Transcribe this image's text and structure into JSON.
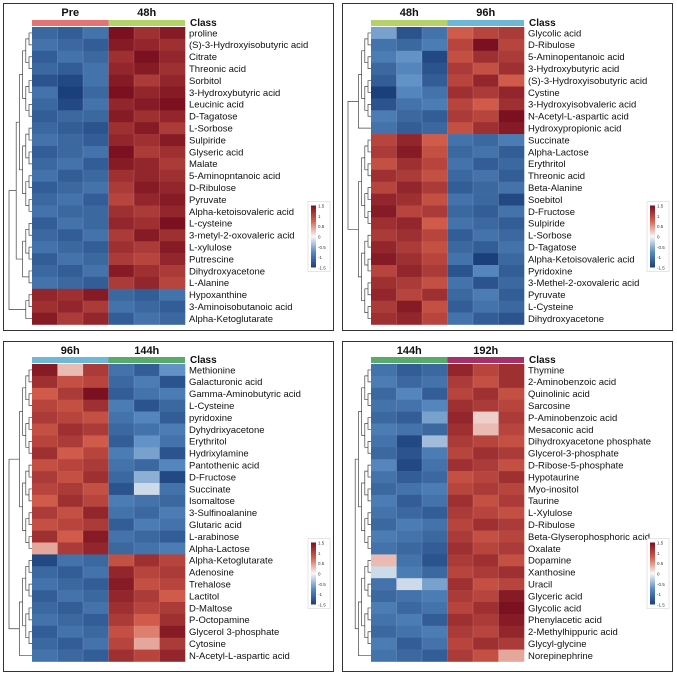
{
  "chart_data": [
    {
      "type": "heatmap",
      "class_label": "Class",
      "groups": [
        {
          "name": "Pre",
          "color": "#e57373"
        },
        {
          "name": "48h",
          "color": "#b5d269"
        }
      ],
      "legend_ticks": [
        "1.5",
        "1",
        "0.5",
        "0",
        "-0.5",
        "-1",
        "-1.5"
      ],
      "rows": [
        "proline",
        "(S)-3-Hydroxyisobutyric acid",
        "Citrate",
        "Threonic acid",
        "Sorbitol",
        "3-Hydroxybutyric acid",
        "Leucinic acid",
        "D-Tagatose",
        "L-Sorbose",
        "Sulpiride",
        "Glyseric acid",
        "Malate",
        "5-Aminopntanoic acid",
        "D-Ribulose",
        "Pyruvate",
        "Alpha-ketoisovaleric acid",
        "L-cysteine",
        "3-metyl-2-oxovaleric acid",
        "L-xylulose",
        "Putrescine",
        "Dihydroxyacetone",
        "L-Alanine",
        "Hypoxanthine",
        "3-Aminoisobutanoic acid",
        "Alpha-Ketoglutarate"
      ],
      "values": [
        [
          -1.1,
          -1.2,
          -1.0,
          1.5,
          1.2,
          1.4
        ],
        [
          -1.0,
          -1.1,
          -1.2,
          1.4,
          1.3,
          1.2
        ],
        [
          -1.2,
          -1.0,
          -1.1,
          1.2,
          1.5,
          1.3
        ],
        [
          -1.1,
          -1.2,
          -1.0,
          1.3,
          1.4,
          1.2
        ],
        [
          -1.3,
          -1.4,
          -1.0,
          1.4,
          1.1,
          1.3
        ],
        [
          -1.0,
          -1.5,
          -1.1,
          1.5,
          1.3,
          1.4
        ],
        [
          -1.1,
          -1.4,
          -1.0,
          1.3,
          1.4,
          1.5
        ],
        [
          -1.2,
          -1.1,
          -1.1,
          1.4,
          1.2,
          1.3
        ],
        [
          -1.1,
          -1.2,
          -1.3,
          1.2,
          1.4,
          1.1
        ],
        [
          -1.0,
          -1.1,
          -1.2,
          1.3,
          1.2,
          1.4
        ],
        [
          -1.2,
          -1.1,
          -1.0,
          1.5,
          1.1,
          1.2
        ],
        [
          -1.1,
          -1.0,
          -1.2,
          1.4,
          1.3,
          1.1
        ],
        [
          -1.0,
          -1.2,
          -1.1,
          1.2,
          1.3,
          1.2
        ],
        [
          -1.2,
          -1.1,
          -1.0,
          1.1,
          1.4,
          1.3
        ],
        [
          -1.1,
          -1.0,
          -1.2,
          1.0,
          1.3,
          1.4
        ],
        [
          -1.0,
          -1.1,
          -1.1,
          1.2,
          1.1,
          1.3
        ],
        [
          -1.2,
          -1.0,
          -1.1,
          1.3,
          1.2,
          1.5
        ],
        [
          -1.1,
          -1.2,
          -1.0,
          1.1,
          1.4,
          1.2
        ],
        [
          -1.0,
          -1.1,
          -1.2,
          1.2,
          1.1,
          1.4
        ],
        [
          -1.2,
          -1.0,
          -1.1,
          1.1,
          1.0,
          1.3
        ],
        [
          -1.1,
          -1.2,
          -1.0,
          1.4,
          1.2,
          1.1
        ],
        [
          -1.0,
          -1.1,
          -1.2,
          1.1,
          1.3,
          1.0
        ],
        [
          1.3,
          1.2,
          1.4,
          -1.1,
          -1.2,
          -1.0
        ],
        [
          1.2,
          1.3,
          1.1,
          -1.0,
          -1.1,
          -1.2
        ],
        [
          1.4,
          1.1,
          1.3,
          -1.2,
          -1.0,
          -1.1
        ]
      ]
    },
    {
      "type": "heatmap",
      "class_label": "Class",
      "groups": [
        {
          "name": "48h",
          "color": "#b5d269"
        },
        {
          "name": "96h",
          "color": "#6fb7d6"
        }
      ],
      "legend_ticks": [
        "1.5",
        "1",
        "0.5",
        "0",
        "-0.5",
        "-1",
        "-1.5"
      ],
      "rows": [
        "Glycolic acid",
        "D-Ribulose",
        "5-Aminopentanoic acid",
        "3-Hydroxybutyric acid",
        "(S)-3-Hydroxyisobutyric acid",
        "Cystine",
        "3-Hydroxyisobvaleric acid",
        "N-Acetyl-L-aspartic acid",
        "Hydroxypropionic acid",
        "Succinate",
        "Alpha-Lactose",
        "Erythritol",
        "Threonic acid",
        "Beta-Alanine",
        "Soebitol",
        "D-Fructose",
        "Sulpiride",
        "L-Sorbose",
        "D-Tagatose",
        "Alpha-Ketoisovaleric acid",
        "Pyridoxine",
        "3-Methel-2-oxovaleric acid",
        "Pyruvate",
        "L-Cysteine",
        "Dihydroxyacetone"
      ],
      "values": [
        [
          -0.6,
          -1.3,
          -1.0,
          0.8,
          1.0,
          1.1
        ],
        [
          -1.0,
          -1.1,
          -0.9,
          1.0,
          1.5,
          1.0
        ],
        [
          -0.9,
          -0.7,
          -1.4,
          0.9,
          1.2,
          1.1
        ],
        [
          -1.1,
          -0.8,
          -1.3,
          1.1,
          0.9,
          1.2
        ],
        [
          -1.2,
          -0.7,
          -1.2,
          1.0,
          1.3,
          0.8
        ],
        [
          -1.5,
          -0.8,
          -1.0,
          1.2,
          1.1,
          1.3
        ],
        [
          -1.3,
          -1.0,
          -0.9,
          1.0,
          0.8,
          1.2
        ],
        [
          -0.9,
          -1.1,
          -1.2,
          1.1,
          1.0,
          1.5
        ],
        [
          -1.0,
          -1.2,
          -1.1,
          0.9,
          1.2,
          1.4
        ],
        [
          1.0,
          1.3,
          0.8,
          -1.0,
          -1.1,
          -0.9
        ],
        [
          1.1,
          1.4,
          0.9,
          -1.1,
          -1.0,
          -1.2
        ],
        [
          0.9,
          1.2,
          1.0,
          -1.0,
          -1.2,
          -1.1
        ],
        [
          1.2,
          1.1,
          0.9,
          -1.1,
          -1.0,
          -1.2
        ],
        [
          1.0,
          1.3,
          1.1,
          -1.2,
          -1.1,
          -1.0
        ],
        [
          1.3,
          1.2,
          0.9,
          -1.0,
          -1.1,
          -1.4
        ],
        [
          1.4,
          1.0,
          1.1,
          -1.1,
          -1.2,
          -1.0
        ],
        [
          1.2,
          1.3,
          0.8,
          -1.0,
          -1.1,
          -1.2
        ],
        [
          1.1,
          1.2,
          1.0,
          -1.2,
          -1.0,
          -1.1
        ],
        [
          1.3,
          1.1,
          0.9,
          -1.1,
          -1.2,
          -1.0
        ],
        [
          1.4,
          1.2,
          1.0,
          -1.0,
          -1.5,
          -1.1
        ],
        [
          1.0,
          1.3,
          1.1,
          -1.3,
          -0.8,
          -1.2
        ],
        [
          1.2,
          1.1,
          0.9,
          -1.0,
          -1.3,
          -1.1
        ],
        [
          1.3,
          1.0,
          1.2,
          -1.1,
          -0.9,
          -1.2
        ],
        [
          1.1,
          1.4,
          0.9,
          -1.2,
          -1.0,
          -1.1
        ],
        [
          1.2,
          1.3,
          1.0,
          -1.0,
          -1.2,
          -1.3
        ]
      ]
    },
    {
      "type": "heatmap",
      "class_label": "Class",
      "groups": [
        {
          "name": "96h",
          "color": "#6fb7d6"
        },
        {
          "name": "144h",
          "color": "#5aaa6b"
        }
      ],
      "legend_ticks": [
        "1.5",
        "1",
        "0.5",
        "0",
        "-0.5",
        "-1",
        "-1.5"
      ],
      "rows": [
        "Methionine",
        "Galacturonic acid",
        "Gamma-Aminobutyric acid",
        "L-Cysteine",
        "pyridoxine",
        "Dyhydrixyacetone",
        "Erythritol",
        "Hydrixylamine",
        "Pantothenic acid",
        "D-Fructose",
        "Succinate",
        "Isomaltose",
        "3-Sulfinoalanine",
        "Glutaric acid",
        "L-arabinose",
        "Alpha-Lactose",
        "Alpha-Ketoglutarate",
        "Adenosine",
        "Trehalose",
        "Lactitol",
        "D-Maltose",
        "P-Octopamine",
        "Glycerol 3-phosphate",
        "Cytosine",
        "N-Acetyl-L-aspartic acid"
      ],
      "values": [
        [
          1.4,
          0.3,
          1.1,
          -1.0,
          -1.2,
          -0.7
        ],
        [
          1.2,
          0.9,
          1.0,
          -1.1,
          -0.9,
          -1.3
        ],
        [
          0.8,
          1.1,
          1.5,
          -1.2,
          -1.0,
          -0.9
        ],
        [
          1.0,
          0.9,
          1.2,
          -0.9,
          -1.3,
          -1.1
        ],
        [
          1.1,
          1.0,
          0.9,
          -1.0,
          -0.8,
          -1.2
        ],
        [
          0.9,
          1.2,
          1.1,
          -1.1,
          -1.0,
          -0.9
        ],
        [
          1.0,
          1.1,
          0.8,
          -1.2,
          -0.7,
          -1.0
        ],
        [
          1.2,
          0.8,
          1.0,
          -0.9,
          -0.6,
          -1.3
        ],
        [
          0.9,
          1.0,
          1.1,
          -1.0,
          -1.1,
          -0.8
        ],
        [
          1.1,
          0.9,
          1.2,
          -1.1,
          -0.5,
          -1.4
        ],
        [
          1.0,
          1.1,
          0.9,
          -1.3,
          -0.2,
          -1.0
        ],
        [
          0.8,
          1.2,
          1.0,
          -0.9,
          -1.0,
          -1.1
        ],
        [
          1.1,
          0.9,
          1.3,
          -1.0,
          -1.1,
          -0.9
        ],
        [
          0.9,
          1.0,
          1.1,
          -1.2,
          -0.9,
          -1.0
        ],
        [
          1.2,
          0.8,
          1.4,
          -1.0,
          -1.1,
          -1.2
        ],
        [
          0.4,
          1.1,
          1.3,
          -1.1,
          -1.0,
          -0.9
        ],
        [
          -1.4,
          -1.0,
          -1.1,
          0.9,
          1.2,
          1.0
        ],
        [
          -1.1,
          -1.2,
          -1.0,
          1.3,
          1.0,
          1.1
        ],
        [
          -1.0,
          -1.1,
          -1.2,
          1.4,
          0.9,
          1.0
        ],
        [
          -1.2,
          -1.0,
          -1.1,
          1.3,
          1.1,
          0.8
        ],
        [
          -1.1,
          -1.2,
          -1.0,
          1.2,
          1.0,
          1.1
        ],
        [
          -1.0,
          -1.1,
          -1.2,
          1.1,
          0.8,
          1.2
        ],
        [
          -1.2,
          -1.0,
          -1.1,
          0.9,
          0.6,
          1.4
        ],
        [
          -1.1,
          -1.2,
          -1.0,
          1.0,
          0.4,
          1.1
        ],
        [
          -1.0,
          -1.1,
          -1.2,
          1.2,
          1.0,
          1.3
        ]
      ]
    },
    {
      "type": "heatmap",
      "class_label": "Class",
      "groups": [
        {
          "name": "144h",
          "color": "#5aaa6b"
        },
        {
          "name": "192h",
          "color": "#a8306a"
        }
      ],
      "legend_ticks": [
        "1.5",
        "1",
        "0.5",
        "0",
        "-0.5",
        "-1",
        "-1.5"
      ],
      "rows": [
        "Thymine",
        "2-Aminobenzoic acid",
        "Quinolinic acid",
        "Sarcosine",
        "P-Aminobenzoic acid",
        "Mesaconic acid",
        "Dihydroxyacetone phosphate",
        "Glycerol-3-phosphate",
        "D-Ribose-5-phosphate",
        "Hypotaurine",
        "Myo-inositol",
        "Taurine",
        "L-Xylulose",
        "D-Ribulose",
        "Beta-Glyserophosphoric acid",
        "Oxalate",
        "Dopamine",
        "Xanthosine",
        "Uracil",
        "Glyceric acid",
        "Glycolic acid",
        "Phenylacetic acid",
        "2-Methylhippuric acid",
        "Glycyl-glycine",
        "Norepinephrine"
      ],
      "values": [
        [
          -1.0,
          -1.2,
          -1.1,
          1.3,
          1.0,
          1.2
        ],
        [
          -0.9,
          -1.1,
          -1.0,
          1.1,
          0.9,
          1.2
        ],
        [
          -1.1,
          -0.8,
          -1.2,
          1.0,
          1.2,
          0.9
        ],
        [
          -1.0,
          -1.0,
          -0.8,
          1.2,
          1.1,
          1.0
        ],
        [
          -1.1,
          -1.2,
          -0.6,
          1.3,
          0.2,
          1.1
        ],
        [
          -0.9,
          -1.0,
          -1.1,
          1.2,
          0.3,
          1.0
        ],
        [
          -1.0,
          -1.4,
          -0.4,
          1.1,
          1.0,
          0.9
        ],
        [
          -1.1,
          -1.3,
          -0.9,
          1.0,
          1.2,
          1.1
        ],
        [
          -0.8,
          -1.4,
          -1.0,
          1.2,
          1.1,
          0.9
        ],
        [
          -1.0,
          -1.2,
          -1.1,
          0.9,
          1.0,
          1.2
        ],
        [
          -1.1,
          -1.0,
          -0.9,
          1.0,
          1.1,
          1.0
        ],
        [
          -0.9,
          -1.2,
          -1.0,
          1.2,
          0.9,
          1.1
        ],
        [
          -1.0,
          -1.1,
          -1.2,
          1.1,
          1.0,
          0.9
        ],
        [
          -1.1,
          -0.9,
          -1.0,
          1.0,
          1.2,
          1.1
        ],
        [
          -0.9,
          -1.0,
          -1.1,
          1.1,
          0.9,
          1.0
        ],
        [
          -1.0,
          -1.1,
          -1.2,
          1.2,
          1.0,
          1.1
        ],
        [
          0.3,
          -1.0,
          -1.3,
          1.1,
          1.2,
          0.9
        ],
        [
          -0.2,
          -0.9,
          -1.1,
          1.0,
          1.1,
          1.2
        ],
        [
          -1.0,
          -0.2,
          -0.6,
          1.2,
          0.9,
          1.0
        ],
        [
          -1.1,
          -1.0,
          -0.9,
          1.1,
          1.0,
          1.4
        ],
        [
          -0.9,
          -1.1,
          -1.0,
          1.0,
          1.2,
          1.5
        ],
        [
          -1.0,
          -0.9,
          -1.2,
          1.2,
          1.1,
          1.4
        ],
        [
          -1.1,
          -1.0,
          -0.9,
          1.1,
          1.0,
          1.3
        ],
        [
          -0.9,
          -1.2,
          -1.0,
          1.0,
          1.2,
          1.1
        ],
        [
          -1.0,
          -1.1,
          -1.2,
          1.1,
          0.9,
          0.4
        ]
      ]
    }
  ]
}
